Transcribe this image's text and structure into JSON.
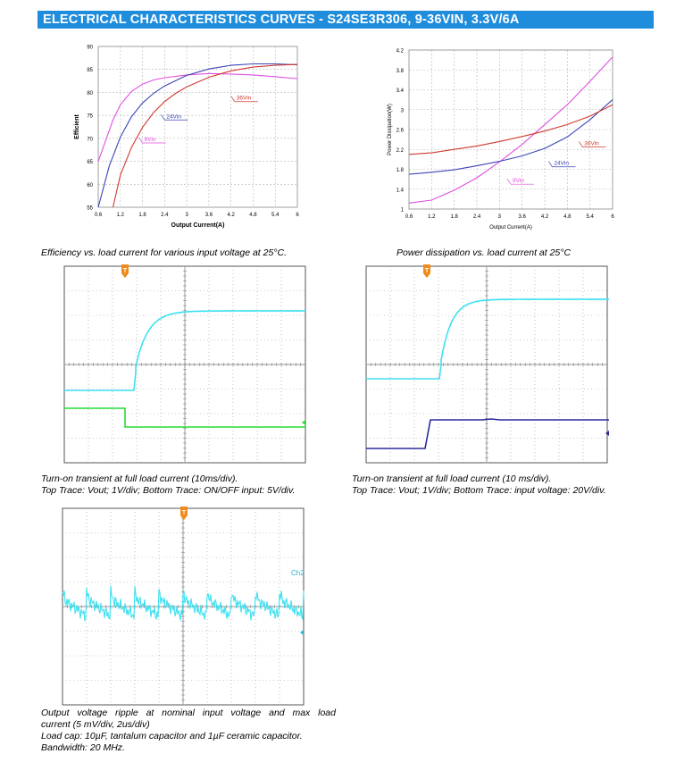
{
  "banner": {
    "title": "ELECTRICAL CHARACTERISTICS CURVES - S24SE3R306, 9-36VIN, 3.3V/6A"
  },
  "chart_data": [
    {
      "type": "line",
      "xlabel": "Output Current(A)",
      "ylabel": "Efficient",
      "xlim": [
        0.6,
        6
      ],
      "ylim": [
        55,
        90
      ],
      "xticks": [
        "0.6",
        "1.2",
        "1.8",
        "2.4",
        "3",
        "3.6",
        "4.2",
        "4.8",
        "5.4",
        "6"
      ],
      "yticks": [
        "55",
        "60",
        "65",
        "70",
        "75",
        "80",
        "85",
        "90"
      ],
      "grid": true,
      "series": [
        {
          "name": "9Vin",
          "color": "#e04ee0",
          "x": [
            0.6,
            0.8,
            1.0,
            1.2,
            1.5,
            1.8,
            2.1,
            2.4,
            3.0,
            3.6,
            4.2,
            4.8,
            5.4,
            6.0
          ],
          "y": [
            65,
            69.5,
            74,
            77.3,
            80.2,
            81.8,
            82.7,
            83.2,
            83.8,
            84.1,
            84.0,
            83.8,
            83.4,
            83.0
          ],
          "label": {
            "text": "9Vin",
            "x": 1.8,
            "y": 69
          }
        },
        {
          "name": "24Vin",
          "color": "#3b45b5",
          "x": [
            0.6,
            0.9,
            1.2,
            1.5,
            1.8,
            2.1,
            2.4,
            3.0,
            3.6,
            4.2,
            4.8,
            5.4,
            6.0
          ],
          "y": [
            55,
            64,
            70.3,
            74.7,
            77.7,
            79.8,
            81.4,
            83.7,
            85.1,
            85.9,
            86.2,
            86.2,
            86.0
          ],
          "label": {
            "text": "24Vin",
            "x": 2.4,
            "y": 74
          }
        },
        {
          "name": "36Vin",
          "color": "#cf3a2e",
          "x": [
            1.0,
            1.2,
            1.5,
            1.8,
            2.1,
            2.4,
            2.7,
            3.0,
            3.6,
            4.2,
            4.8,
            5.4,
            6.0
          ],
          "y": [
            55,
            62,
            68,
            72.4,
            75.6,
            78,
            79.8,
            81.2,
            83.3,
            84.7,
            85.5,
            85.9,
            86.1
          ],
          "label": {
            "text": "36Vin",
            "x": 4.3,
            "y": 78
          }
        }
      ]
    },
    {
      "type": "line",
      "xlabel": "Output Current(A)",
      "ylabel": "Power Dissipation(W)",
      "xlim": [
        0.6,
        6
      ],
      "ylim": [
        1,
        4.2
      ],
      "xticks": [
        "0.6",
        "1.2",
        "1.8",
        "2.4",
        "3",
        "3.6",
        "4.2",
        "4.8",
        "5.4",
        "6"
      ],
      "yticks": [
        "1",
        "1.4",
        "1.8",
        "2.2",
        "2.6",
        "3",
        "3.4",
        "3.8",
        "4.2"
      ],
      "grid": true,
      "series": [
        {
          "name": "9Vin",
          "color": "#e04ee0",
          "x": [
            0.6,
            1.2,
            1.8,
            2.4,
            3.0,
            3.6,
            4.2,
            4.8,
            5.4,
            6.0
          ],
          "y": [
            1.12,
            1.18,
            1.38,
            1.63,
            1.95,
            2.3,
            2.7,
            3.1,
            3.57,
            4.06
          ],
          "label": {
            "text": "9Vin",
            "x": 3.3,
            "y": 1.5
          }
        },
        {
          "name": "24Vin",
          "color": "#3b45b5",
          "x": [
            0.6,
            1.2,
            1.8,
            2.4,
            3.0,
            3.6,
            4.2,
            4.8,
            5.4,
            6.0
          ],
          "y": [
            1.7,
            1.74,
            1.79,
            1.87,
            1.96,
            2.07,
            2.22,
            2.45,
            2.8,
            3.2
          ],
          "label": {
            "text": "24Vin",
            "x": 4.4,
            "y": 1.85
          }
        },
        {
          "name": "36Vin",
          "color": "#cf3a2e",
          "x": [
            0.6,
            1.2,
            1.8,
            2.4,
            3.0,
            3.6,
            4.2,
            4.8,
            5.4,
            6.0
          ],
          "y": [
            2.1,
            2.13,
            2.2,
            2.27,
            2.36,
            2.46,
            2.57,
            2.7,
            2.87,
            3.1
          ],
          "label": {
            "text": "36Vin",
            "x": 5.2,
            "y": 2.25
          }
        }
      ]
    }
  ],
  "captions": {
    "efficiency": "Efficiency vs. load current for various input voltage at 25°C.",
    "power": "Power dissipation vs. load current at 25°C",
    "scope1_line1": "Turn-on transient at full load current (10ms/div).",
    "scope1_line2": "Top Trace: Vout; 1V/div; Bottom Trace: ON/OFF input: 5V/div.",
    "scope2_line1": "Turn-on transient at full load current (10 ms/div).",
    "scope2_line2": "Top Trace: Vout; 1V/div; Bottom Trace: input voltage: 20V/div.",
    "scope3_line1": "Output voltage ripple at nominal input voltage and max load",
    "scope3_line2": "current (5 mV/div, 2us/div)",
    "scope3_line3": "Load cap: 10µF, tantalum capacitor and 1µF ceramic capacitor.",
    "scope3_line4": "Bandwidth: 20 MHz."
  },
  "scopes": {
    "trigger_marker": "T",
    "ch2_label": "Ch2",
    "colors": {
      "cyan": "#3fe0f0",
      "green": "#22dd33",
      "navy": "#2a2a9a",
      "marker": "#f08a18"
    }
  }
}
